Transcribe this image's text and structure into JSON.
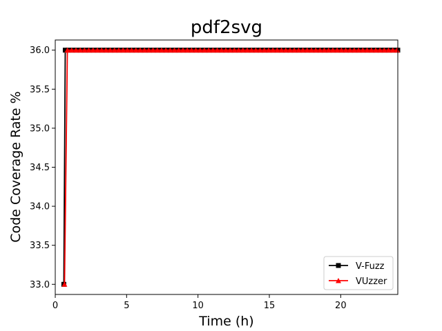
{
  "chart_data": {
    "type": "line",
    "title": "pdf2svg",
    "xlabel": "Time (h)",
    "ylabel": "Code Coverage Rate %",
    "xlim": [
      0,
      24
    ],
    "ylim": [
      32.87,
      36.13
    ],
    "xticks": [
      0,
      5,
      10,
      15,
      20
    ],
    "yticks": [
      33.0,
      33.5,
      34.0,
      34.5,
      35.0,
      35.5,
      36.0
    ],
    "xtick_labels": [
      "0",
      "5",
      "10",
      "15",
      "20"
    ],
    "ytick_labels": [
      "33.0",
      "33.5",
      "34.0",
      "34.5",
      "35.0",
      "35.5",
      "36.0"
    ],
    "grid": false,
    "legend_position": "lower-right",
    "series": [
      {
        "name": "V-Fuzz",
        "color": "#000000",
        "marker": "square",
        "points": [
          [
            0.6,
            33.0
          ],
          [
            0.7,
            36.0
          ],
          [
            0.9,
            36.0
          ],
          [
            1.2,
            36.0
          ],
          [
            1.5,
            36.0
          ],
          [
            1.8,
            36.0
          ],
          [
            2.1,
            36.0
          ],
          [
            2.4,
            36.0
          ],
          [
            2.7,
            36.0
          ],
          [
            3.0,
            36.0
          ],
          [
            3.3,
            36.0
          ],
          [
            3.6,
            36.0
          ],
          [
            3.9,
            36.0
          ],
          [
            4.2,
            36.0
          ],
          [
            4.5,
            36.0
          ],
          [
            4.8,
            36.0
          ],
          [
            5.1,
            36.0
          ],
          [
            5.4,
            36.0
          ],
          [
            5.7,
            36.0
          ],
          [
            6.0,
            36.0
          ],
          [
            6.3,
            36.0
          ],
          [
            6.6,
            36.0
          ],
          [
            6.9,
            36.0
          ],
          [
            7.2,
            36.0
          ],
          [
            7.5,
            36.0
          ],
          [
            7.8,
            36.0
          ],
          [
            8.1,
            36.0
          ],
          [
            8.4,
            36.0
          ],
          [
            8.7,
            36.0
          ],
          [
            9.0,
            36.0
          ],
          [
            9.3,
            36.0
          ],
          [
            9.6,
            36.0
          ],
          [
            9.9,
            36.0
          ],
          [
            10.2,
            36.0
          ],
          [
            10.5,
            36.0
          ],
          [
            10.8,
            36.0
          ],
          [
            11.1,
            36.0
          ],
          [
            11.4,
            36.0
          ],
          [
            11.7,
            36.0
          ],
          [
            12.0,
            36.0
          ],
          [
            12.3,
            36.0
          ],
          [
            12.6,
            36.0
          ],
          [
            12.9,
            36.0
          ],
          [
            13.2,
            36.0
          ],
          [
            13.5,
            36.0
          ],
          [
            13.8,
            36.0
          ],
          [
            14.1,
            36.0
          ],
          [
            14.4,
            36.0
          ],
          [
            14.7,
            36.0
          ],
          [
            15.0,
            36.0
          ],
          [
            15.3,
            36.0
          ],
          [
            15.6,
            36.0
          ],
          [
            15.9,
            36.0
          ],
          [
            16.2,
            36.0
          ],
          [
            16.5,
            36.0
          ],
          [
            16.8,
            36.0
          ],
          [
            17.1,
            36.0
          ],
          [
            17.4,
            36.0
          ],
          [
            17.7,
            36.0
          ],
          [
            18.0,
            36.0
          ],
          [
            18.3,
            36.0
          ],
          [
            18.6,
            36.0
          ],
          [
            18.9,
            36.0
          ],
          [
            19.2,
            36.0
          ],
          [
            19.5,
            36.0
          ],
          [
            19.8,
            36.0
          ],
          [
            20.1,
            36.0
          ],
          [
            20.4,
            36.0
          ],
          [
            20.7,
            36.0
          ],
          [
            21.0,
            36.0
          ],
          [
            21.3,
            36.0
          ],
          [
            21.6,
            36.0
          ],
          [
            21.9,
            36.0
          ],
          [
            22.2,
            36.0
          ],
          [
            22.5,
            36.0
          ],
          [
            22.8,
            36.0
          ],
          [
            23.1,
            36.0
          ],
          [
            23.4,
            36.0
          ],
          [
            23.7,
            36.0
          ],
          [
            24.0,
            36.0
          ]
        ]
      },
      {
        "name": "VUzzer",
        "color": "#ff0000",
        "marker": "triangle",
        "points": [
          [
            0.65,
            33.0
          ],
          [
            0.85,
            36.0
          ],
          [
            1.15,
            36.0
          ],
          [
            1.45,
            36.0
          ],
          [
            1.75,
            36.0
          ],
          [
            2.05,
            36.0
          ],
          [
            2.35,
            36.0
          ],
          [
            2.65,
            36.0
          ],
          [
            2.95,
            36.0
          ],
          [
            3.25,
            36.0
          ],
          [
            3.55,
            36.0
          ],
          [
            3.85,
            36.0
          ],
          [
            4.15,
            36.0
          ],
          [
            4.45,
            36.0
          ],
          [
            4.75,
            36.0
          ],
          [
            5.05,
            36.0
          ],
          [
            5.35,
            36.0
          ],
          [
            5.65,
            36.0
          ],
          [
            5.95,
            36.0
          ],
          [
            6.25,
            36.0
          ],
          [
            6.55,
            36.0
          ],
          [
            6.85,
            36.0
          ],
          [
            7.15,
            36.0
          ],
          [
            7.45,
            36.0
          ],
          [
            7.75,
            36.0
          ],
          [
            8.05,
            36.0
          ],
          [
            8.35,
            36.0
          ],
          [
            8.65,
            36.0
          ],
          [
            8.95,
            36.0
          ],
          [
            9.25,
            36.0
          ],
          [
            9.55,
            36.0
          ],
          [
            9.85,
            36.0
          ],
          [
            10.15,
            36.0
          ],
          [
            10.45,
            36.0
          ],
          [
            10.75,
            36.0
          ],
          [
            11.05,
            36.0
          ],
          [
            11.35,
            36.0
          ],
          [
            11.65,
            36.0
          ],
          [
            11.95,
            36.0
          ],
          [
            12.25,
            36.0
          ],
          [
            12.55,
            36.0
          ],
          [
            12.85,
            36.0
          ],
          [
            13.15,
            36.0
          ],
          [
            13.45,
            36.0
          ],
          [
            13.75,
            36.0
          ],
          [
            14.05,
            36.0
          ],
          [
            14.35,
            36.0
          ],
          [
            14.65,
            36.0
          ],
          [
            14.95,
            36.0
          ],
          [
            15.25,
            36.0
          ],
          [
            15.55,
            36.0
          ],
          [
            15.85,
            36.0
          ],
          [
            16.15,
            36.0
          ],
          [
            16.45,
            36.0
          ],
          [
            16.75,
            36.0
          ],
          [
            17.05,
            36.0
          ],
          [
            17.35,
            36.0
          ],
          [
            17.65,
            36.0
          ],
          [
            17.95,
            36.0
          ],
          [
            18.25,
            36.0
          ],
          [
            18.55,
            36.0
          ],
          [
            18.85,
            36.0
          ],
          [
            19.15,
            36.0
          ],
          [
            19.45,
            36.0
          ],
          [
            19.75,
            36.0
          ],
          [
            20.05,
            36.0
          ],
          [
            20.35,
            36.0
          ],
          [
            20.65,
            36.0
          ],
          [
            20.95,
            36.0
          ],
          [
            21.25,
            36.0
          ],
          [
            21.55,
            36.0
          ],
          [
            21.85,
            36.0
          ],
          [
            22.15,
            36.0
          ],
          [
            22.45,
            36.0
          ],
          [
            22.75,
            36.0
          ],
          [
            23.05,
            36.0
          ],
          [
            23.35,
            36.0
          ],
          [
            23.65,
            36.0
          ],
          [
            23.95,
            36.0
          ]
        ]
      }
    ]
  }
}
